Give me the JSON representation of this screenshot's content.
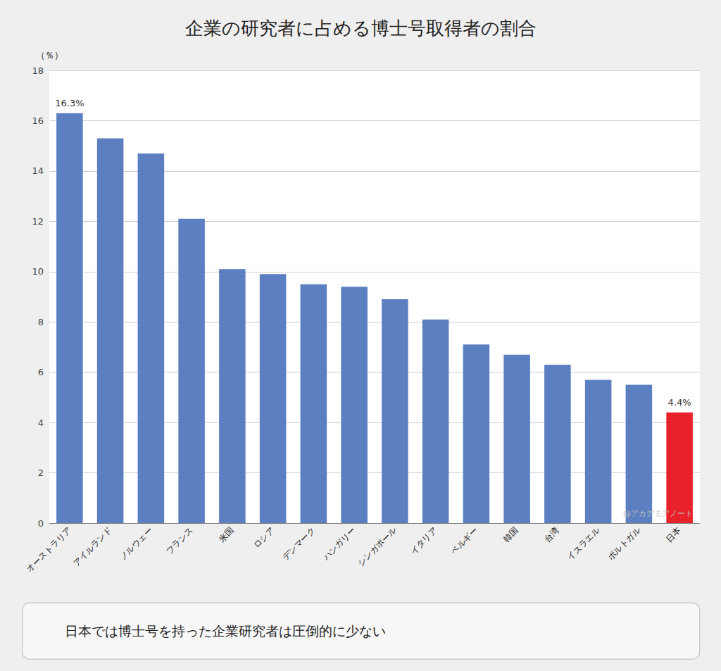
{
  "chart_data": {
    "type": "bar",
    "title": "企業の研究者に占める博士号取得者の割合",
    "ylabel": "（％）",
    "categories": [
      "オーストラリア",
      "アイルランド",
      "ノルウェー",
      "フランス",
      "米国",
      "ロシア",
      "デンマーク",
      "ハンガリー",
      "シンガポール",
      "イタリア",
      "ベルギー",
      "韓国",
      "台湾",
      "イスラエル",
      "ポルトガル",
      "日本"
    ],
    "values": [
      16.3,
      15.3,
      14.7,
      12.1,
      10.1,
      9.9,
      9.5,
      9.4,
      8.9,
      8.1,
      7.1,
      6.7,
      6.3,
      5.7,
      5.5,
      4.4
    ],
    "colors": [
      "#5B7FC0",
      "#5B7FC0",
      "#5B7FC0",
      "#5B7FC0",
      "#5B7FC0",
      "#5B7FC0",
      "#5B7FC0",
      "#5B7FC0",
      "#5B7FC0",
      "#5B7FC0",
      "#5B7FC0",
      "#5B7FC0",
      "#5B7FC0",
      "#5B7FC0",
      "#5B7FC0",
      "#E8212A"
    ],
    "ylim": [
      0,
      18
    ],
    "yticks": [
      0,
      2,
      4,
      6,
      8,
      10,
      12,
      14,
      16,
      18
    ],
    "grid": true,
    "annotations": [
      {
        "text": "16.3%",
        "x": "オーストラリア",
        "y": 16.3
      },
      {
        "text": "4.4%",
        "x": "日本",
        "y": 4.4
      },
      {
        "text": "@アカデミアノート"
      },
      {
        "text": "日本では博士号を持った企業研究者は圧倒的に少ない"
      }
    ]
  }
}
